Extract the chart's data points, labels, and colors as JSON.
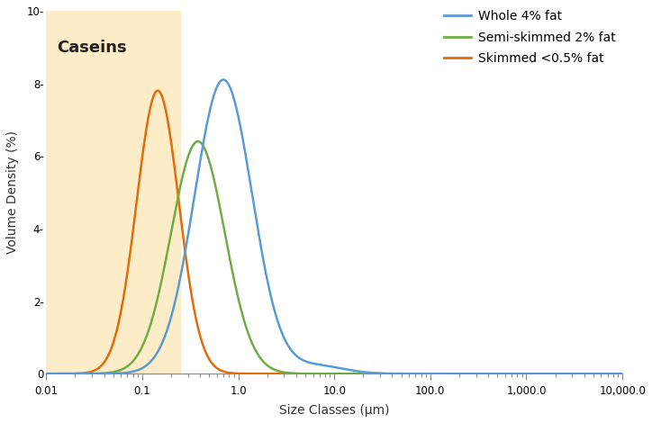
{
  "xlabel": "Size Classes (μm)",
  "ylabel": "Volume Density (%)",
  "xmin": 0.01,
  "xmax": 10000.0,
  "ymin": 0,
  "ymax": 10,
  "casein_shade_xmax": 0.25,
  "casein_label": "Caseins",
  "casein_color": "#FDECC8",
  "legend_labels": [
    "Whole 4% fat",
    "Semi-skimmed 2% fat",
    "Skimmed <0.5% fat"
  ],
  "line_colors": [
    "#5B9BD5",
    "#70AD47",
    "#E36C0A"
  ],
  "whole_peak_x": 0.7,
  "whole_peak_y": 8.1,
  "whole_sigma": 0.3,
  "whole_peak2_x": 6.5,
  "whole_peak2_y": 0.22,
  "whole_sigma2": 0.28,
  "semi_peak_x": 0.38,
  "semi_peak_y": 6.4,
  "semi_sigma": 0.28,
  "skim_peak_x": 0.145,
  "skim_peak_y": 7.8,
  "skim_sigma": 0.22,
  "yticks": [
    0,
    2,
    4,
    6,
    8,
    10
  ],
  "background_color": "#ffffff"
}
